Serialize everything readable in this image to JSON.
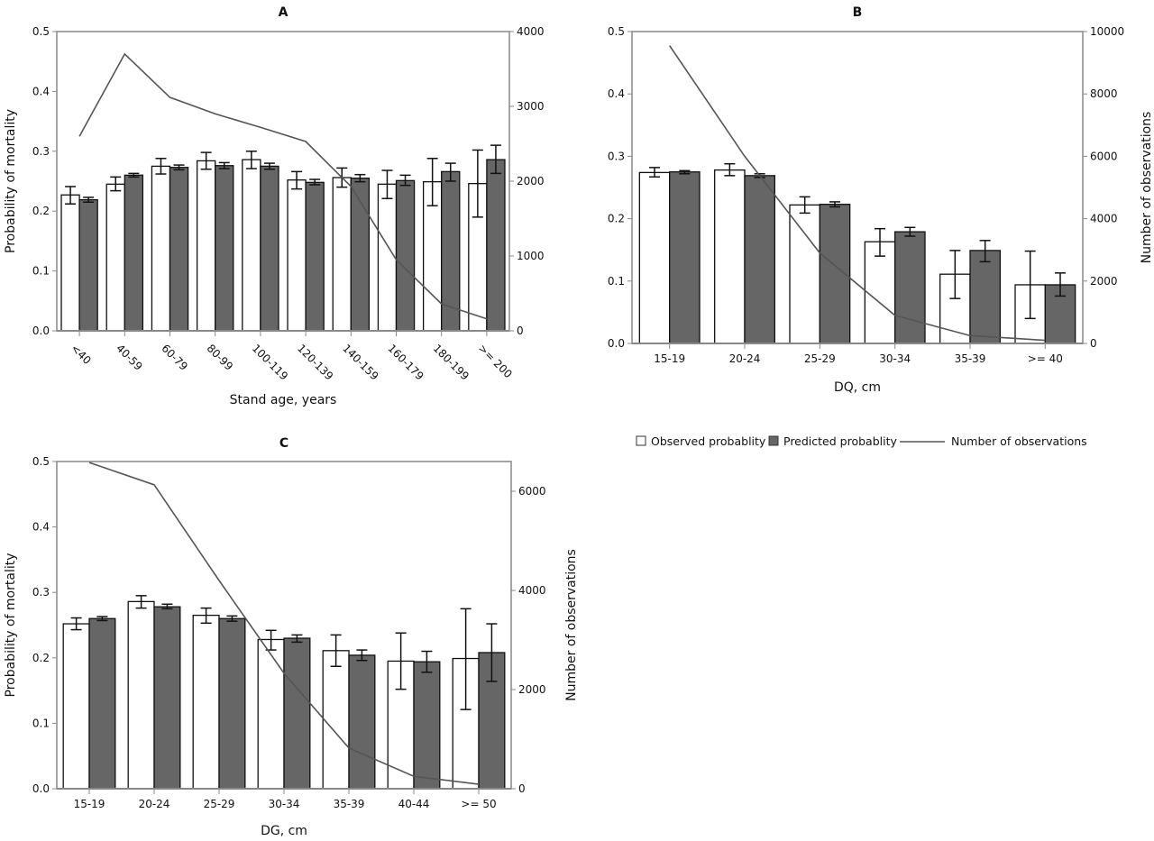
{
  "legend": {
    "observed": "Observed probablity",
    "predicted": "Predicted probablity",
    "count": "Number of observations"
  },
  "colors": {
    "observed_fill": "#ffffff",
    "predicted_fill": "#666666",
    "bar_stroke": "#111111",
    "line": "#555555",
    "axis": "#888888"
  },
  "chart_data": [
    {
      "id": "A",
      "type": "bar",
      "title": "A",
      "xlabel": "Stand age, years",
      "ylabel": "Probability of mortality",
      "y2label": "",
      "rotate_x_labels": true,
      "categories": [
        "<40",
        "40-59",
        "60-79",
        "80-99",
        "100-119",
        "120-139",
        "140-159",
        "160-179",
        "180-199",
        ">= 200"
      ],
      "ylim": [
        0,
        0.5
      ],
      "yticks": [
        0.0,
        0.1,
        0.2,
        0.3,
        0.4,
        0.5
      ],
      "y2lim": [
        0,
        4000
      ],
      "y2ticks": [
        0,
        1000,
        2000,
        3000,
        4000
      ],
      "series": [
        {
          "name": "Observed probablity",
          "values": [
            0.227,
            0.245,
            0.275,
            0.284,
            0.286,
            0.252,
            0.256,
            0.245,
            0.249,
            0.246
          ],
          "err_low": [
            0.212,
            0.234,
            0.262,
            0.27,
            0.271,
            0.237,
            0.24,
            0.221,
            0.209,
            0.19
          ],
          "err_high": [
            0.241,
            0.257,
            0.288,
            0.298,
            0.3,
            0.266,
            0.272,
            0.268,
            0.288,
            0.302
          ]
        },
        {
          "name": "Predicted probablity",
          "values": [
            0.219,
            0.26,
            0.273,
            0.276,
            0.275,
            0.248,
            0.255,
            0.251,
            0.266,
            0.286
          ],
          "err_low": [
            0.215,
            0.257,
            0.269,
            0.271,
            0.27,
            0.244,
            0.249,
            0.243,
            0.25,
            0.263
          ],
          "err_high": [
            0.223,
            0.263,
            0.277,
            0.281,
            0.28,
            0.253,
            0.261,
            0.26,
            0.28,
            0.31
          ]
        },
        {
          "name": "Number of observations",
          "axis": "right",
          "values": [
            2600,
            3700,
            3120,
            2900,
            2720,
            2530,
            1930,
            950,
            360,
            160
          ]
        }
      ]
    },
    {
      "id": "B",
      "type": "bar",
      "title": "B",
      "xlabel": "DQ, cm",
      "ylabel": "",
      "y2label": "Number of observations",
      "rotate_x_labels": false,
      "categories": [
        "15-19",
        "20-24",
        "25-29",
        "30-34",
        "35-39",
        ">= 40"
      ],
      "ylim": [
        0,
        0.5
      ],
      "yticks": [
        0.0,
        0.1,
        0.2,
        0.3,
        0.4,
        0.5
      ],
      "y2lim": [
        0,
        10000
      ],
      "y2ticks": [
        0,
        2000,
        4000,
        6000,
        8000,
        10000
      ],
      "series": [
        {
          "name": "Observed probablity",
          "values": [
            0.274,
            0.278,
            0.222,
            0.163,
            0.111,
            0.094
          ],
          "err_low": [
            0.267,
            0.269,
            0.209,
            0.14,
            0.072,
            0.04
          ],
          "err_high": [
            0.282,
            0.288,
            0.235,
            0.184,
            0.149,
            0.148
          ]
        },
        {
          "name": "Predicted probablity",
          "values": [
            0.275,
            0.269,
            0.223,
            0.179,
            0.149,
            0.094
          ],
          "err_low": [
            0.272,
            0.266,
            0.219,
            0.172,
            0.131,
            0.076
          ],
          "err_high": [
            0.277,
            0.272,
            0.227,
            0.186,
            0.165,
            0.113
          ]
        },
        {
          "name": "Number of observations",
          "axis": "right",
          "values": [
            9550,
            6000,
            2900,
            900,
            250,
            100
          ]
        }
      ]
    },
    {
      "id": "C",
      "type": "bar",
      "title": "C",
      "xlabel": "DG, cm",
      "ylabel": "Probability of mortality",
      "y2label": "Number of observations",
      "rotate_x_labels": false,
      "categories": [
        "15-19",
        "20-24",
        "25-29",
        "30-34",
        "35-39",
        "40-44",
        ">= 50"
      ],
      "ylim": [
        0,
        0.5
      ],
      "yticks": [
        0.0,
        0.1,
        0.2,
        0.3,
        0.4,
        0.5
      ],
      "y2lim": [
        0,
        6600
      ],
      "y2ticks": [
        0,
        2000,
        4000,
        6000
      ],
      "series": [
        {
          "name": "Observed probablity",
          "values": [
            0.252,
            0.286,
            0.265,
            0.228,
            0.211,
            0.195,
            0.199
          ],
          "err_low": [
            0.243,
            0.276,
            0.253,
            0.212,
            0.187,
            0.152,
            0.121
          ],
          "err_high": [
            0.261,
            0.295,
            0.276,
            0.242,
            0.235,
            0.238,
            0.275
          ]
        },
        {
          "name": "Predicted probablity",
          "values": [
            0.26,
            0.278,
            0.26,
            0.23,
            0.204,
            0.194,
            0.208
          ],
          "err_low": [
            0.257,
            0.275,
            0.256,
            0.224,
            0.196,
            0.178,
            0.164
          ],
          "err_high": [
            0.263,
            0.282,
            0.264,
            0.235,
            0.212,
            0.21,
            0.252
          ]
        },
        {
          "name": "Number of observations",
          "axis": "right",
          "values": [
            6580,
            6130,
            4200,
            2330,
            820,
            250,
            90
          ]
        }
      ]
    }
  ]
}
